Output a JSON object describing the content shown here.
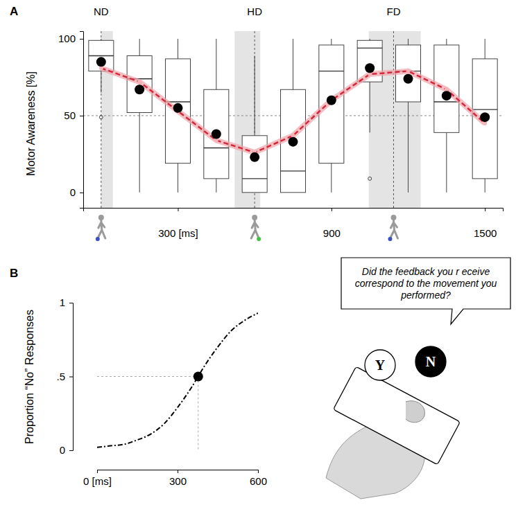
{
  "chart_data": [
    {
      "panel": "A",
      "type": "box",
      "x": [
        0,
        150,
        300,
        450,
        600,
        750,
        900,
        1050,
        1200,
        1350,
        1500
      ],
      "whisker_low": [
        65,
        0,
        0,
        0,
        0,
        0,
        0,
        39,
        0,
        0,
        0
      ],
      "q1": [
        79,
        52,
        19,
        9,
        0,
        0,
        19,
        72,
        59,
        39,
        9
      ],
      "median": [
        89,
        74,
        59,
        29,
        9,
        14,
        79,
        94,
        79,
        59,
        54
      ],
      "q3": [
        99,
        89,
        87,
        67,
        37,
        67,
        96,
        99,
        96,
        96,
        87
      ],
      "whisker_high": [
        100,
        100,
        100,
        100,
        89,
        100,
        100,
        100,
        100,
        100,
        100
      ],
      "mean": [
        85,
        67,
        55,
        38,
        23,
        33,
        60,
        81,
        74,
        63,
        49
      ],
      "fit": [
        81,
        72,
        53,
        34,
        26,
        37,
        60,
        77,
        79,
        67,
        45
      ],
      "outliers": [
        {
          "x": 0,
          "value": 49
        },
        {
          "x": 1050,
          "value": 9
        }
      ],
      "regions": [
        {
          "label": "ND",
          "x": 0,
          "start": 0,
          "end": 46,
          "color": "#3a4fc4"
        },
        {
          "label": "HD",
          "x": 600,
          "start": 522,
          "end": 622,
          "color": "#3fc43f"
        },
        {
          "label": "FD",
          "x": 1143,
          "start": 1046,
          "end": 1249,
          "color": "#3a4fc4"
        }
      ],
      "hline": 50,
      "ylabel": "Motor Awareness [%]",
      "xlim": [
        -70,
        1570
      ],
      "ylim": [
        -10,
        105
      ],
      "xticks": [
        {
          "value": 300,
          "label": "300 [ms]"
        },
        900,
        1500
      ],
      "yticks": [
        0,
        50,
        100
      ]
    },
    {
      "panel": "B",
      "type": "line",
      "x": [
        0,
        50,
        100,
        150,
        200,
        250,
        300,
        350,
        400,
        450,
        500,
        550,
        600
      ],
      "values": [
        0.02,
        0.03,
        0.04,
        0.07,
        0.11,
        0.18,
        0.29,
        0.42,
        0.57,
        0.7,
        0.81,
        0.88,
        0.93
      ],
      "threshold": {
        "x": 377,
        "y": 0.5
      },
      "ylabel": "Proportion “No” Responses",
      "xlim": [
        0,
        600
      ],
      "ylim": [
        0,
        1
      ],
      "xticks": [
        {
          "value": 0,
          "label": "0 [ms]"
        },
        300,
        600
      ],
      "yticks": [
        0,
        {
          "value": 0.5,
          "label": ".5"
        },
        1
      ],
      "line_style": "dashed",
      "annotation": "Did the feedback you r eceive correspond to the movement you performed?",
      "buttons": [
        "Y",
        "N"
      ]
    }
  ]
}
